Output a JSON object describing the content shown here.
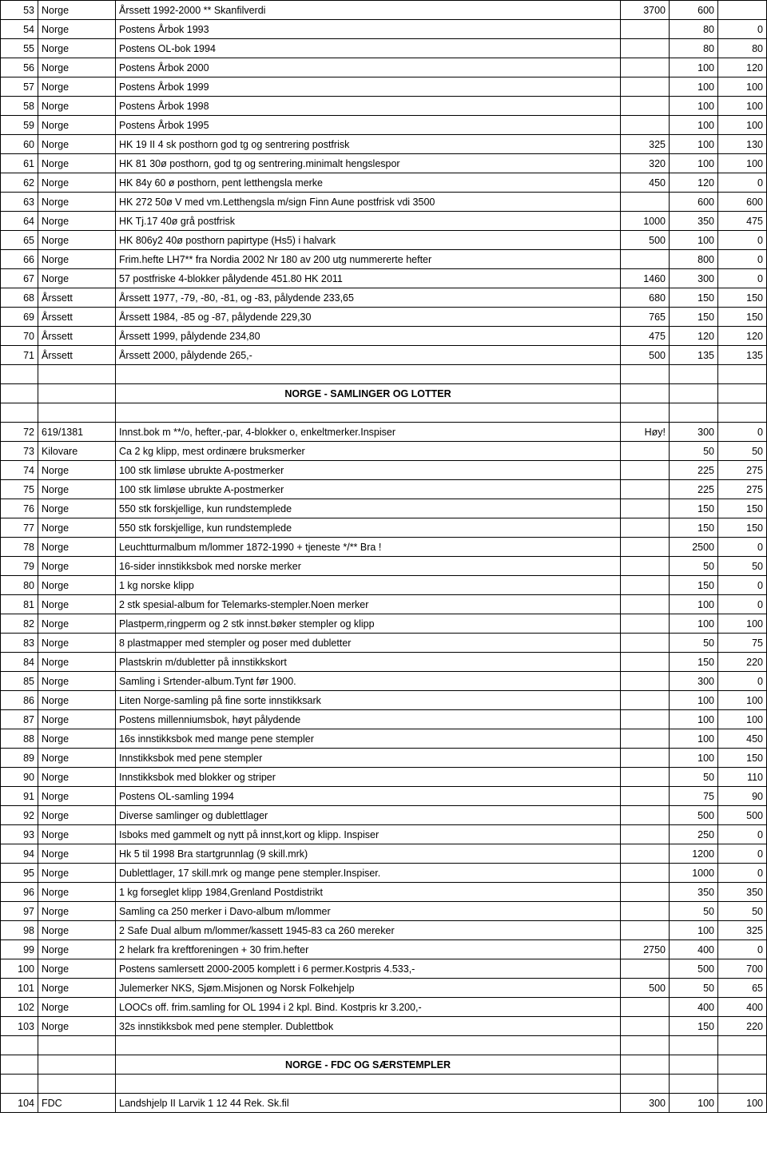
{
  "sections": [
    {
      "rows": [
        {
          "n": "53",
          "cat": "Norge",
          "desc": "Årssett 1992-2000 **                                           Skanfilverdi",
          "v1": "3700",
          "v2": "600",
          "v3": ""
        },
        {
          "n": "54",
          "cat": "Norge",
          "desc": "Postens Årbok 1993",
          "v1": "",
          "v2": "80",
          "v3": "0"
        },
        {
          "n": "55",
          "cat": "Norge",
          "desc": "Postens OL-bok 1994",
          "v1": "",
          "v2": "80",
          "v3": "80"
        },
        {
          "n": "56",
          "cat": "Norge",
          "desc": "Postens Årbok 2000",
          "v1": "",
          "v2": "100",
          "v3": "120"
        },
        {
          "n": "57",
          "cat": "Norge",
          "desc": "Postens Årbok 1999",
          "v1": "",
          "v2": "100",
          "v3": "100"
        },
        {
          "n": "58",
          "cat": "Norge",
          "desc": "Postens Årbok 1998",
          "v1": "",
          "v2": "100",
          "v3": "100"
        },
        {
          "n": "59",
          "cat": "Norge",
          "desc": "Postens Årbok 1995",
          "v1": "",
          "v2": "100",
          "v3": "100"
        },
        {
          "n": "60",
          "cat": "Norge",
          "desc": "HK 19 II 4 sk posthorn god tg og sentrering postfrisk",
          "v1": "325",
          "v2": "100",
          "v3": "130"
        },
        {
          "n": "61",
          "cat": "Norge",
          "desc": "HK 81 30ø posthorn, god tg og sentrering.minimalt hengslespor",
          "v1": "320",
          "v2": "100",
          "v3": "100"
        },
        {
          "n": "62",
          "cat": "Norge",
          "desc": "HK 84y 60 ø posthorn, pent letthengsla merke",
          "v1": "450",
          "v2": "120",
          "v3": "0"
        },
        {
          "n": "63",
          "cat": "Norge",
          "desc": "HK 272 50ø V med vm.Letthengsla m/sign Finn Aune  postfrisk vdi 3500",
          "v1": "",
          "v2": "600",
          "v3": "600"
        },
        {
          "n": "64",
          "cat": "Norge",
          "desc": "HK Tj.17 40ø grå postfrisk",
          "v1": "1000",
          "v2": "350",
          "v3": "475"
        },
        {
          "n": "65",
          "cat": "Norge",
          "desc": "HK 806y2 40ø posthorn papirtype (Hs5) i halvark",
          "v1": "500",
          "v2": "100",
          "v3": "0"
        },
        {
          "n": "66",
          "cat": "Norge",
          "desc": "Frim.hefte LH7** fra Nordia 2002 Nr 180 av 200 utg nummererte hefter",
          "v1": "",
          "v2": "800",
          "v3": "0"
        },
        {
          "n": "67",
          "cat": "Norge",
          "desc": "57 postfriske 4-blokker  pålydende 451.80                                 HK 2011",
          "v1": "1460",
          "v2": "300",
          "v3": "0"
        },
        {
          "n": "68",
          "cat": "Årssett",
          "desc": "Årssett 1977, -79, -80, -81, og -83, pålydende 233,65",
          "v1": "680",
          "v2": "150",
          "v3": "150"
        },
        {
          "n": "69",
          "cat": "Årssett",
          "desc": "Årssett 1984, -85 og -87, pålydende 229,30",
          "v1": "765",
          "v2": "150",
          "v3": "150"
        },
        {
          "n": "70",
          "cat": "Årssett",
          "desc": "Årssett 1999, pålydende 234,80",
          "v1": "475",
          "v2": "120",
          "v3": "120"
        },
        {
          "n": "71",
          "cat": "Årssett",
          "desc": "Årssett 2000, pålydende 265,-",
          "v1": "500",
          "v2": "135",
          "v3": "135"
        }
      ]
    },
    {
      "header": "NORGE - SAMLINGER OG LOTTER",
      "rows": [
        {
          "n": "72",
          "cat": "619/1381",
          "desc": "Innst.bok m **/o, hefter,-par, 4-blokker o, enkeltmerker.Inspiser",
          "v1": "Høy!",
          "v2": "300",
          "v3": "0"
        },
        {
          "n": "73",
          "cat": "Kilovare",
          "desc": "Ca 2 kg klipp, mest ordinære bruksmerker",
          "v1": "",
          "v2": "50",
          "v3": "50"
        },
        {
          "n": "74",
          "cat": "Norge",
          "desc": "100 stk limløse ubrukte A-postmerker",
          "v1": "",
          "v2": "225",
          "v3": "275"
        },
        {
          "n": "75",
          "cat": "Norge",
          "desc": "100 stk limløse ubrukte A-postmerker",
          "v1": "",
          "v2": "225",
          "v3": "275"
        },
        {
          "n": "76",
          "cat": "Norge",
          "desc": "550 stk forskjellige, kun rundstemplede",
          "v1": "",
          "v2": "150",
          "v3": "150"
        },
        {
          "n": "77",
          "cat": "Norge",
          "desc": "550 stk forskjellige, kun rundstemplede",
          "v1": "",
          "v2": "150",
          "v3": "150"
        },
        {
          "n": "78",
          "cat": "Norge",
          "desc": "Leuchtturmalbum m/lommer 1872-1990 + tjeneste */** Bra !",
          "v1": "",
          "v2": "2500",
          "v3": "0"
        },
        {
          "n": "79",
          "cat": "Norge",
          "desc": "16-sider innstikksbok med norske merker",
          "v1": "",
          "v2": "50",
          "v3": "50"
        },
        {
          "n": "80",
          "cat": "Norge",
          "desc": "1 kg norske klipp",
          "v1": "",
          "v2": "150",
          "v3": "0"
        },
        {
          "n": "81",
          "cat": "Norge",
          "desc": "2 stk spesial-album for Telemarks-stempler.Noen merker",
          "v1": "",
          "v2": "100",
          "v3": "0"
        },
        {
          "n": "82",
          "cat": "Norge",
          "desc": "Plastperm,ringperm og 2 stk innst.bøker stempler og klipp",
          "v1": "",
          "v2": "100",
          "v3": "100"
        },
        {
          "n": "83",
          "cat": "Norge",
          "desc": "8 plastmapper med stempler og poser med dubletter",
          "v1": "",
          "v2": "50",
          "v3": "75"
        },
        {
          "n": "84",
          "cat": "Norge",
          "desc": "Plastskrin m/dubletter på innstikkskort",
          "v1": "",
          "v2": "150",
          "v3": "220"
        },
        {
          "n": "85",
          "cat": "Norge",
          "desc": "Samling i Srtender-album.Tynt før 1900.",
          "v1": "",
          "v2": "300",
          "v3": "0"
        },
        {
          "n": "86",
          "cat": "Norge",
          "desc": "Liten Norge-samling på fine sorte innstikksark",
          "v1": "",
          "v2": "100",
          "v3": "100"
        },
        {
          "n": "87",
          "cat": "Norge",
          "desc": "Postens millenniumsbok, høyt pålydende",
          "v1": "",
          "v2": "100",
          "v3": "100"
        },
        {
          "n": "88",
          "cat": "Norge",
          "desc": "16s innstikksbok med mange pene stempler",
          "v1": "",
          "v2": "100",
          "v3": "450"
        },
        {
          "n": "89",
          "cat": "Norge",
          "desc": " Innstikksbok med  pene stempler",
          "v1": "",
          "v2": "100",
          "v3": "150"
        },
        {
          "n": "90",
          "cat": "Norge",
          "desc": "Innstikksbok med blokker og striper",
          "v1": "",
          "v2": "50",
          "v3": "110"
        },
        {
          "n": "91",
          "cat": "Norge",
          "desc": "Postens OL-samling 1994",
          "v1": "",
          "v2": "75",
          "v3": "90"
        },
        {
          "n": "92",
          "cat": "Norge",
          "desc": "Diverse samlinger og dublettlager",
          "v1": "",
          "v2": "500",
          "v3": "500"
        },
        {
          "n": "93",
          "cat": "Norge",
          "desc": "Isboks med gammelt og nytt på innst,kort og klipp. Inspiser",
          "v1": "",
          "v2": "250",
          "v3": "0"
        },
        {
          "n": "94",
          "cat": "Norge",
          "desc": "Hk 5 til 1998 Bra startgrunnlag (9 skill.mrk)",
          "v1": "",
          "v2": "1200",
          "v3": "0"
        },
        {
          "n": "95",
          "cat": "Norge",
          "desc": "Dublettlager, 17 skill.mrk og mange pene stempler.Inspiser.",
          "v1": "",
          "v2": "1000",
          "v3": "0"
        },
        {
          "n": "96",
          "cat": "Norge",
          "desc": "1 kg forseglet klipp 1984,Grenland Postdistrikt",
          "v1": "",
          "v2": "350",
          "v3": "350"
        },
        {
          "n": "97",
          "cat": "Norge",
          "desc": "Samling ca 250 merker i Davo-album m/lommer",
          "v1": "",
          "v2": "50",
          "v3": "50"
        },
        {
          "n": "98",
          "cat": "Norge",
          "desc": "2 Safe Dual album  m/lommer/kassett 1945-83 ca 260 mereker",
          "v1": "",
          "v2": "100",
          "v3": "325"
        },
        {
          "n": "99",
          "cat": "Norge",
          "desc": "2 helark fra kreftforeningen + 30 frim.hefter",
          "v1": "2750",
          "v2": "400",
          "v3": "0"
        },
        {
          "n": "100",
          "cat": "Norge",
          "desc": "Postens samlersett 2000-2005 komplett i 6 permer.Kostpris 4.533,-",
          "v1": "",
          "v2": "500",
          "v3": "700"
        },
        {
          "n": "101",
          "cat": "Norge",
          "desc": "Julemerker NKS, Sjøm.Misjonen og Norsk Folkehjelp",
          "v1": "500",
          "v2": "50",
          "v3": "65"
        },
        {
          "n": "102",
          "cat": "Norge",
          "desc": "LOOCs off. frim.samling for OL 1994 i 2 kpl. Bind. Kostpris kr 3.200,-",
          "v1": "",
          "v2": "400",
          "v3": "400"
        },
        {
          "n": "103",
          "cat": "Norge",
          "desc": "32s innstikksbok med pene stempler. Dublettbok",
          "v1": "",
          "v2": "150",
          "v3": "220"
        }
      ]
    },
    {
      "header": "NORGE - FDC OG SÆRSTEMPLER",
      "rows": [
        {
          "n": "104",
          "cat": "FDC",
          "desc": "Landshjelp II Larvik 1 12 44 Rek.                                                    Sk.fil",
          "v1": "300",
          "v2": "100",
          "v3": "100"
        }
      ]
    }
  ]
}
